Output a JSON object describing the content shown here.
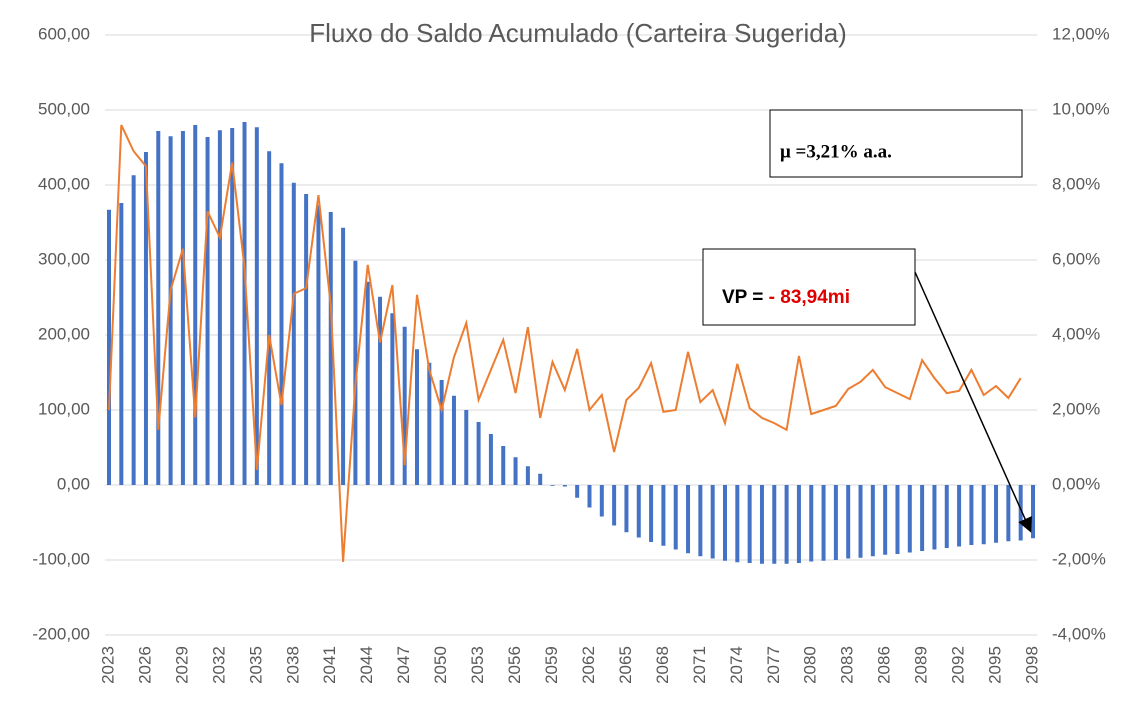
{
  "chart_data": {
    "type": "bar_line",
    "title": "Fluxo do Saldo Acumulado (Carteira Sugerida)",
    "categories": [
      "2023",
      null,
      null,
      "2026",
      null,
      null,
      "2029",
      null,
      null,
      "2032",
      null,
      null,
      "2035",
      null,
      null,
      "2038",
      null,
      null,
      "2041",
      null,
      null,
      "2044",
      null,
      null,
      "2047",
      null,
      null,
      "2050",
      null,
      null,
      "2053",
      null,
      null,
      "2056",
      null,
      null,
      "2059",
      null,
      null,
      "2062",
      null,
      null,
      "2065",
      null,
      null,
      "2068",
      null,
      null,
      "2071",
      null,
      null,
      "2074",
      null,
      null,
      "2077",
      null,
      null,
      "2080",
      null,
      null,
      "2083",
      null,
      null,
      "2086",
      null,
      null,
      "2089",
      null,
      null,
      "2092",
      null,
      null,
      "2095",
      null,
      null,
      "2098"
    ],
    "series": [
      {
        "type": "bar",
        "color": "#4472c4",
        "values": [
          367,
          376,
          413,
          444,
          472,
          465,
          472,
          480,
          464,
          473,
          476,
          484,
          477,
          445,
          429,
          403,
          388,
          373,
          364,
          343,
          299,
          271,
          251,
          229,
          211,
          181,
          163,
          140,
          119,
          100,
          84,
          68,
          52,
          37,
          25,
          15,
          -1,
          -2,
          -17,
          -30,
          -42,
          -54,
          -63,
          -70,
          -76,
          -81,
          -86,
          -91,
          -95,
          -98,
          -101,
          -103,
          -104,
          -105,
          -105,
          -105,
          -104,
          -102,
          -101,
          -100,
          -98,
          -97,
          -95,
          -93,
          -92,
          -90,
          -88,
          -86,
          -84,
          -82,
          -80,
          -79,
          -77,
          -75,
          -74,
          -71
        ]
      },
      {
        "type": "line",
        "axis": "y2",
        "color": "#ed7d31",
        "values": [
          2.0,
          9.6,
          8.9,
          8.5,
          1.47,
          5.2,
          6.3,
          1.8,
          7.3,
          6.6,
          8.6,
          5.8,
          0.4,
          4.0,
          2.13,
          5.1,
          5.25,
          7.73,
          4.8,
          -2.05,
          2.67,
          5.87,
          3.8,
          5.33,
          0.53,
          5.07,
          3.07,
          2.0,
          3.41,
          4.32,
          2.27,
          3.07,
          3.87,
          2.45,
          4.21,
          1.79,
          3.28,
          2.53,
          3.63,
          2.0,
          2.4,
          0.88,
          2.27,
          2.59,
          3.25,
          1.95,
          2.0,
          3.55,
          2.21,
          2.53,
          1.65,
          3.23,
          2.05,
          1.79,
          1.65,
          1.47,
          3.44,
          1.89,
          2.0,
          2.11,
          2.56,
          2.75,
          3.07,
          2.61,
          2.45,
          2.29,
          3.33,
          2.85,
          2.45,
          2.51,
          3.07,
          2.4,
          2.64,
          2.32,
          2.85,
          null
        ]
      }
    ],
    "ylim": [
      -200,
      600
    ],
    "yticks": [
      {
        "value": -200,
        "label": "-200,00"
      },
      {
        "value": -100,
        "label": "-100,00"
      },
      {
        "value": 0,
        "label": "0,00"
      },
      {
        "value": 100,
        "label": "100,00"
      },
      {
        "value": 200,
        "label": "200,00"
      },
      {
        "value": 300,
        "label": "300,00"
      },
      {
        "value": 400,
        "label": "400,00"
      },
      {
        "value": 500,
        "label": "500,00"
      },
      {
        "value": 600,
        "label": "600,00"
      }
    ],
    "y2lim": [
      -4,
      12
    ],
    "y2ticks": [
      {
        "value": -4,
        "label": "-4,00%"
      },
      {
        "value": -2,
        "label": "-2,00%"
      },
      {
        "value": 0,
        "label": "0,00%"
      },
      {
        "value": 2,
        "label": "2,00%"
      },
      {
        "value": 4,
        "label": "4,00%"
      },
      {
        "value": 6,
        "label": "6,00%"
      },
      {
        "value": 8,
        "label": "8,00%"
      },
      {
        "value": 10,
        "label": "10,00%"
      },
      {
        "value": 12,
        "label": "12,00%"
      }
    ],
    "grid": true,
    "annotations": [
      "μ =3,21% a.a.",
      "VP = ",
      "- 83,94mi"
    ]
  }
}
